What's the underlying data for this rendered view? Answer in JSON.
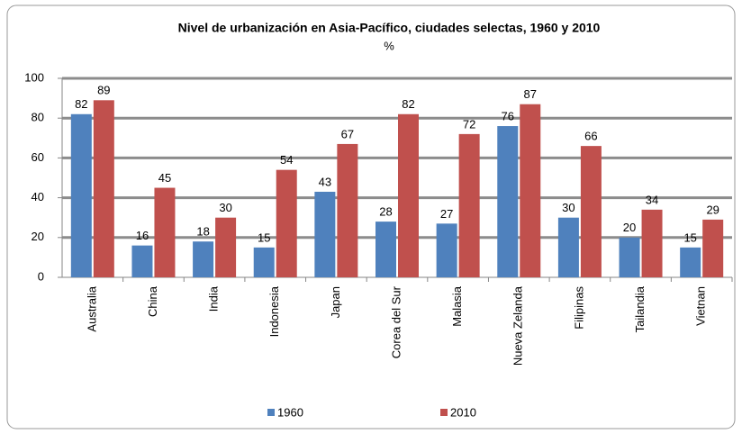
{
  "chart_data": {
    "type": "bar",
    "title": "Nivel de urbanización en Asia-Pacífico, ciudades selectas, 1960 y 2010",
    "subtitle": "%",
    "categories": [
      "Australia",
      "China",
      "India",
      "Indonesia",
      "Japan",
      "Corea del Sur",
      "Malasia",
      "Nueva Zelanda",
      "Filipinas",
      "Tailandia",
      "Vietnan"
    ],
    "series": [
      {
        "name": "1960",
        "color": "#4f81bd",
        "values": [
          82,
          16,
          18,
          15,
          43,
          28,
          27,
          76,
          30,
          20,
          15
        ]
      },
      {
        "name": "2010",
        "color": "#c0504d",
        "values": [
          89,
          45,
          30,
          54,
          67,
          82,
          72,
          87,
          66,
          34,
          29
        ]
      }
    ],
    "ylim": [
      0,
      100
    ],
    "yticks": [
      0,
      20,
      40,
      60,
      80,
      100
    ],
    "grid": true,
    "legend": "bottom"
  }
}
